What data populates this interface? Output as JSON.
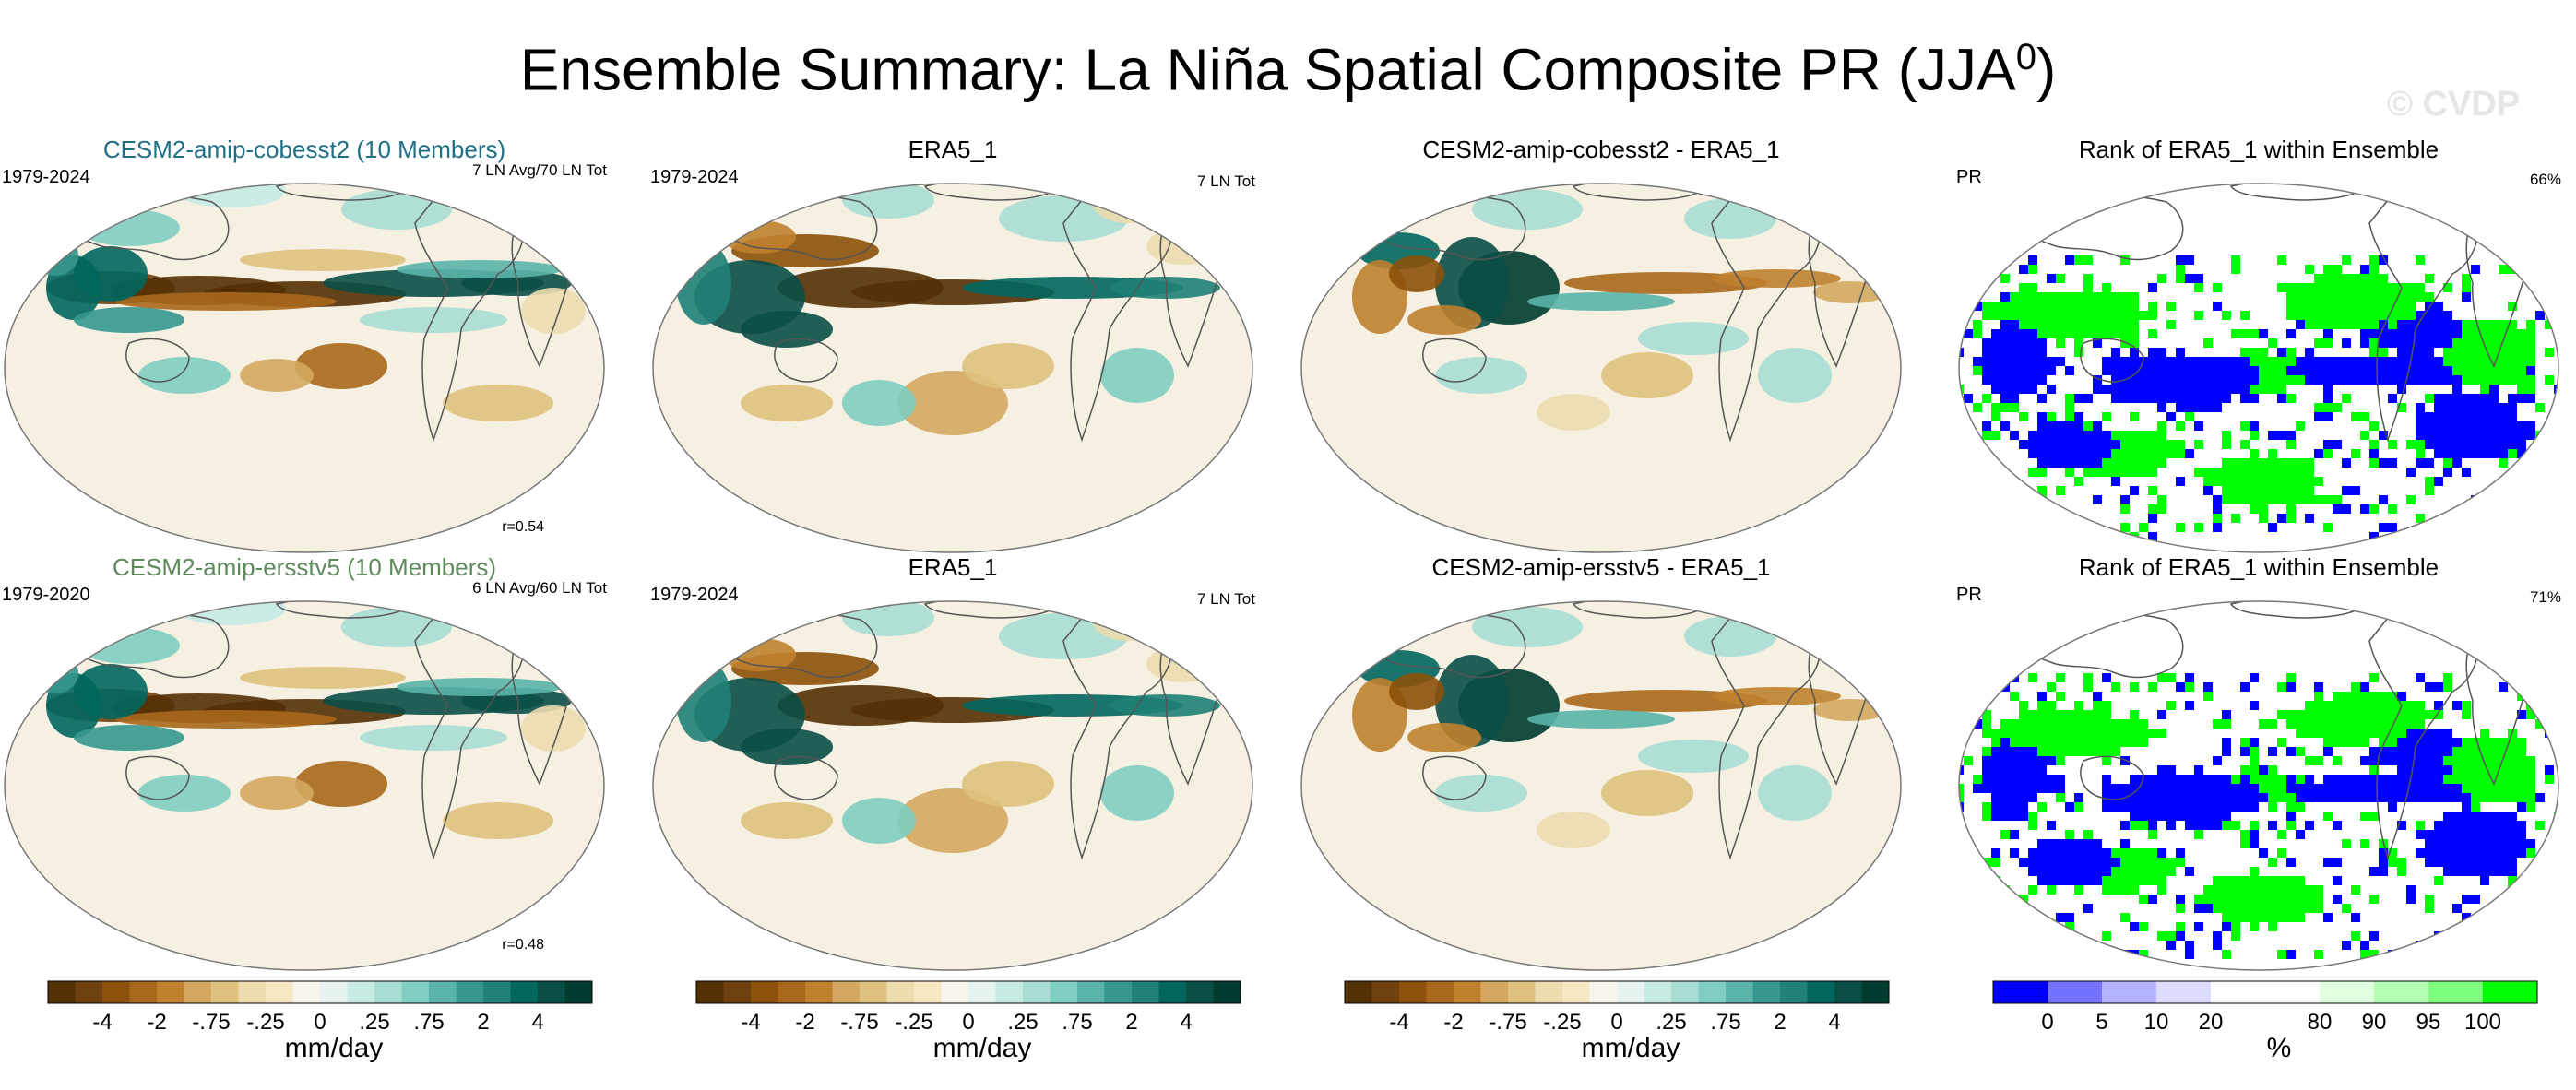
{
  "figure": {
    "title_main": "Ensemble Summary: La Niña Spatial Composite PR (JJA",
    "title_sup": "0",
    "title_end": ")",
    "watermark": "© CVDP"
  },
  "colors": {
    "map_background": "#f5f0e2",
    "coast": "#555555",
    "div_palette": [
      "#543005",
      "#6f4110",
      "#8c510a",
      "#a8681b",
      "#bf812d",
      "#d4a861",
      "#dfc27d",
      "#ecdcb0",
      "#f6e8c3",
      "#f7f4ee",
      "#e7f3f1",
      "#c7eae5",
      "#a8ddd4",
      "#80cdc1",
      "#5ab4a9",
      "#35978f",
      "#1f8177",
      "#01665e",
      "#0a4f47",
      "#003c30"
    ],
    "rank_palette": [
      "#0000ff",
      "#7373ff",
      "#b3b3ff",
      "#dcdcff",
      "#ffffff",
      "#ffffff",
      "#dfffdf",
      "#b3ffb3",
      "#7dff7d",
      "#00ff00"
    ]
  },
  "panels": [
    {
      "id": "r1c1",
      "title": "CESM2-amip-cobesst2 (10 Members)",
      "years": "1979-2024",
      "tag": "7 LN Avg/70 LN Tot",
      "r": "r=0.54",
      "kind": "model",
      "style": "c1"
    },
    {
      "id": "r1c2",
      "title": "ERA5_1",
      "years": "1979-2024",
      "tag": "7 LN Tot",
      "kind": "obs"
    },
    {
      "id": "r1c3",
      "title": "CESM2-amip-cobesst2 - ERA5_1",
      "kind": "diff"
    },
    {
      "id": "r1c4",
      "title": "Rank of ERA5_1 within Ensemble",
      "years": "PR",
      "tag": "66%",
      "kind": "rank"
    },
    {
      "id": "r2c1",
      "title": "CESM2-amip-ersstv5 (10 Members)",
      "years": "1979-2020",
      "tag": "6 LN Avg/60 LN Tot",
      "r": "r=0.48",
      "kind": "model",
      "style": "c2"
    },
    {
      "id": "r2c2",
      "title": "ERA5_1",
      "years": "1979-2024",
      "tag": "7 LN Tot",
      "kind": "obs"
    },
    {
      "id": "r2c3",
      "title": "CESM2-amip-ersstv5 - ERA5_1",
      "kind": "diff"
    },
    {
      "id": "r2c4",
      "title": "Rank of ERA5_1 within Ensemble",
      "years": "PR",
      "tag": "71%",
      "kind": "rank"
    }
  ],
  "colorbars": [
    {
      "label": "mm/day",
      "ticks": [
        "-4",
        "-2",
        "-.75",
        "-.25",
        "0",
        ".25",
        ".75",
        "2",
        "4"
      ],
      "kind": "div"
    },
    {
      "label": "mm/day",
      "ticks": [
        "-4",
        "-2",
        "-.75",
        "-.25",
        "0",
        ".25",
        ".75",
        "2",
        "4"
      ],
      "kind": "div"
    },
    {
      "label": "mm/day",
      "ticks": [
        "-4",
        "-2",
        "-.75",
        "-.25",
        "0",
        ".25",
        ".75",
        "2",
        "4"
      ],
      "kind": "div"
    },
    {
      "label": "%",
      "ticks": [
        "0",
        "5",
        "10",
        "20",
        "80",
        "90",
        "95",
        "100"
      ],
      "kind": "rank"
    }
  ],
  "chart_data": {
    "type": "heatmap",
    "title": "Ensemble Summary: La Niña Spatial Composite PR (JJA0)",
    "variable": "PR",
    "units": "mm/day",
    "contour_levels": [
      -6,
      -4,
      -3,
      -2,
      -1.5,
      -1,
      -0.75,
      -0.5,
      -0.25,
      -0.1,
      0,
      0.1,
      0.25,
      0.5,
      0.75,
      1,
      1.5,
      2,
      3,
      4,
      6
    ],
    "rank_levels_percent": [
      0,
      5,
      10,
      20,
      80,
      90,
      95,
      100
    ],
    "projection": "global equal-area (Robinson-like)",
    "panels": [
      {
        "name": "CESM2-amip-cobesst2 (10 Members)",
        "period": "1979-2024",
        "la_nina_events": "7 LN Avg/70 LN Tot",
        "pattern_correlation": 0.54
      },
      {
        "name": "ERA5_1",
        "period": "1979-2024",
        "la_nina_events": "7 LN Tot"
      },
      {
        "name": "CESM2-amip-cobesst2 - ERA5_1",
        "type": "difference"
      },
      {
        "name": "Rank of ERA5_1 within Ensemble",
        "field": "PR",
        "percent_within_10_90": 66
      },
      {
        "name": "CESM2-amip-ersstv5 (10 Members)",
        "period": "1979-2020",
        "la_nina_events": "6 LN Avg/60 LN Tot",
        "pattern_correlation": 0.48
      },
      {
        "name": "ERA5_1",
        "period": "1979-2024",
        "la_nina_events": "7 LN Tot"
      },
      {
        "name": "CESM2-amip-ersstv5 - ERA5_1",
        "type": "difference"
      },
      {
        "name": "Rank of ERA5_1 within Ensemble",
        "field": "PR",
        "percent_within_10_90": 71
      }
    ]
  }
}
